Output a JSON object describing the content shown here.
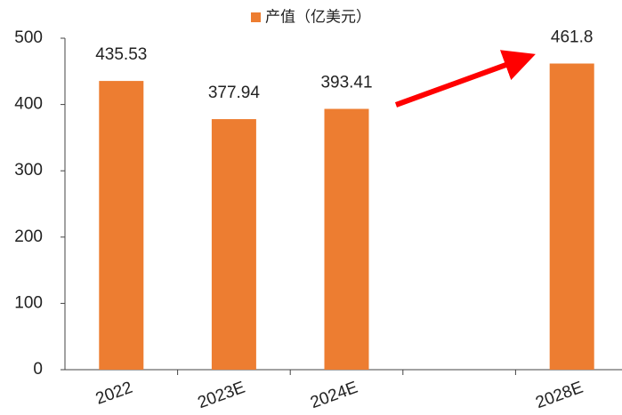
{
  "chart_data": {
    "type": "bar",
    "series": [
      {
        "name": "产值（亿美元）",
        "color": "#ed7d31",
        "values": [
          435.53,
          377.94,
          393.41,
          null,
          461.8
        ]
      }
    ],
    "categories": [
      "2022",
      "2023E",
      "2024E",
      null,
      "2028E"
    ],
    "ylim": [
      0,
      500
    ],
    "yticks": [
      0,
      100,
      200,
      300,
      400,
      500
    ],
    "legend": "top"
  }
}
